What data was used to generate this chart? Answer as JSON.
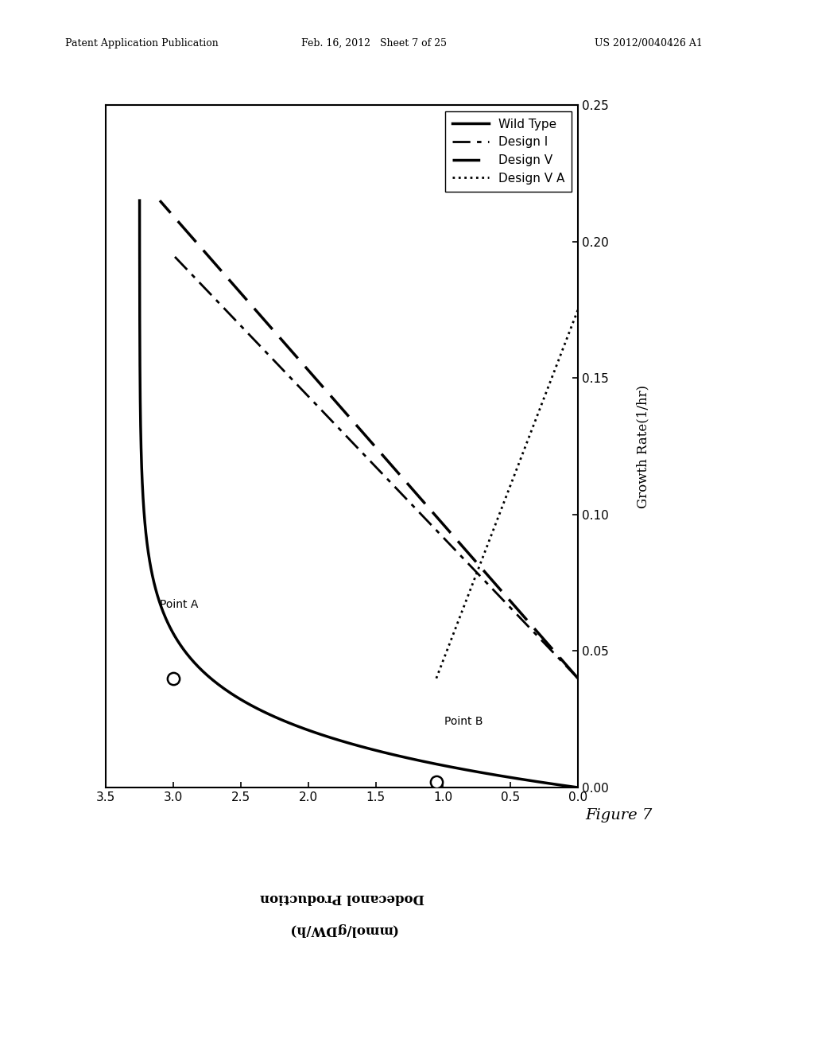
{
  "header_left": "Patent Application Publication",
  "header_mid": "Feb. 16, 2012   Sheet 7 of 25",
  "header_right": "US 2012/0040426 A1",
  "figure_label": "Figure 7",
  "xlabel_display": "Dodecanol Production\n(mmol/gDW/h)",
  "ylabel_display": "Growth Rate(1/hr)",
  "gr_ticks": [
    0.0,
    0.05,
    0.1,
    0.15,
    0.2,
    0.25
  ],
  "dod_ticks": [
    0.0,
    0.5,
    1.0,
    1.5,
    2.0,
    2.5,
    3.0,
    3.5
  ],
  "legend_labels": [
    "Wild Type",
    "Design I",
    "Design V",
    "Design V A"
  ],
  "point_a_label": "Point A",
  "point_b_label": "Point B",
  "bg_color": "#ffffff",
  "fontsize_tick": 11,
  "fontsize_label": 12,
  "fontsize_legend": 11
}
